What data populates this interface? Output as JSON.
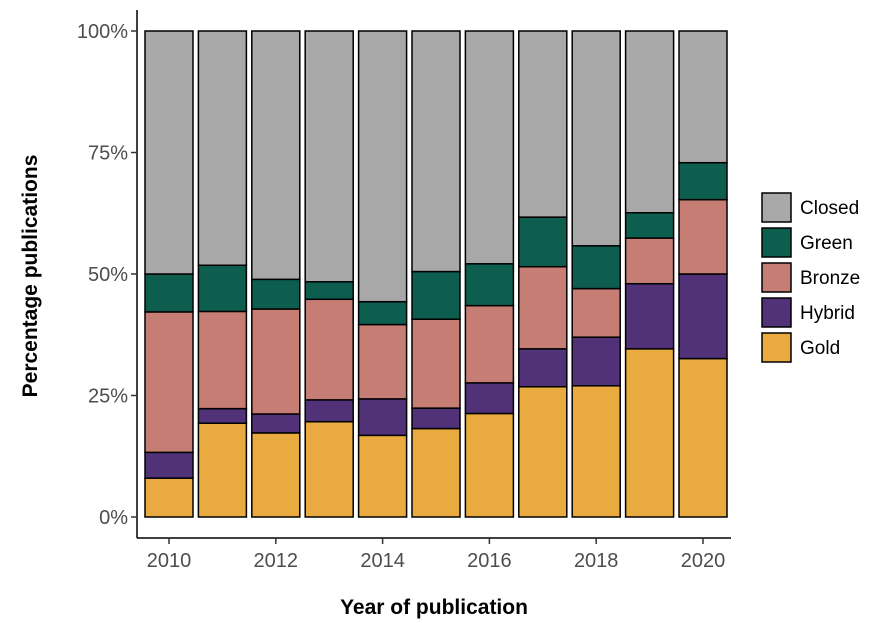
{
  "chart_data": {
    "type": "bar",
    "stacked": true,
    "title": "",
    "xlabel": "Year of publication",
    "ylabel": "Percentage publications",
    "ylim": [
      0,
      100
    ],
    "y_ticks": [
      "0%",
      "25%",
      "50%",
      "75%",
      "100%"
    ],
    "x_ticks": [
      "2010",
      "2012",
      "2014",
      "2016",
      "2018",
      "2020"
    ],
    "categories": [
      "2010",
      "2011",
      "2012",
      "2013",
      "2014",
      "2015",
      "2016",
      "2017",
      "2018",
      "2019",
      "2020"
    ],
    "legend_position": "right",
    "grid": false,
    "series": [
      {
        "name": "Gold",
        "color": "#E9AB3F",
        "values": [
          8,
          19.3,
          17.3,
          19.6,
          16.8,
          18.2,
          21.3,
          26.8,
          27,
          34.6,
          32.6
        ]
      },
      {
        "name": "Hybrid",
        "color": "#513178",
        "values": [
          5.3,
          3,
          3.9,
          4.5,
          7.5,
          4.2,
          6.3,
          7.8,
          10,
          13.4,
          17.4
        ]
      },
      {
        "name": "Bronze",
        "color": "#C67D73",
        "values": [
          28.9,
          20,
          21.6,
          20.7,
          15.3,
          18.3,
          15.9,
          16.9,
          10,
          9.4,
          15.3
        ]
      },
      {
        "name": "Green",
        "color": "#0E5E50",
        "values": [
          7.8,
          9.5,
          6.1,
          3.6,
          4.7,
          9.8,
          8.6,
          10.2,
          8.8,
          5.2,
          7.6
        ]
      },
      {
        "name": "Closed",
        "color": "#A8A8A8",
        "values": [
          50,
          48.2,
          51.1,
          51.6,
          55.7,
          49.5,
          47.9,
          38.3,
          44.2,
          37.4,
          27.1
        ]
      }
    ],
    "legend_order": [
      "Closed",
      "Green",
      "Bronze",
      "Hybrid",
      "Gold"
    ]
  }
}
